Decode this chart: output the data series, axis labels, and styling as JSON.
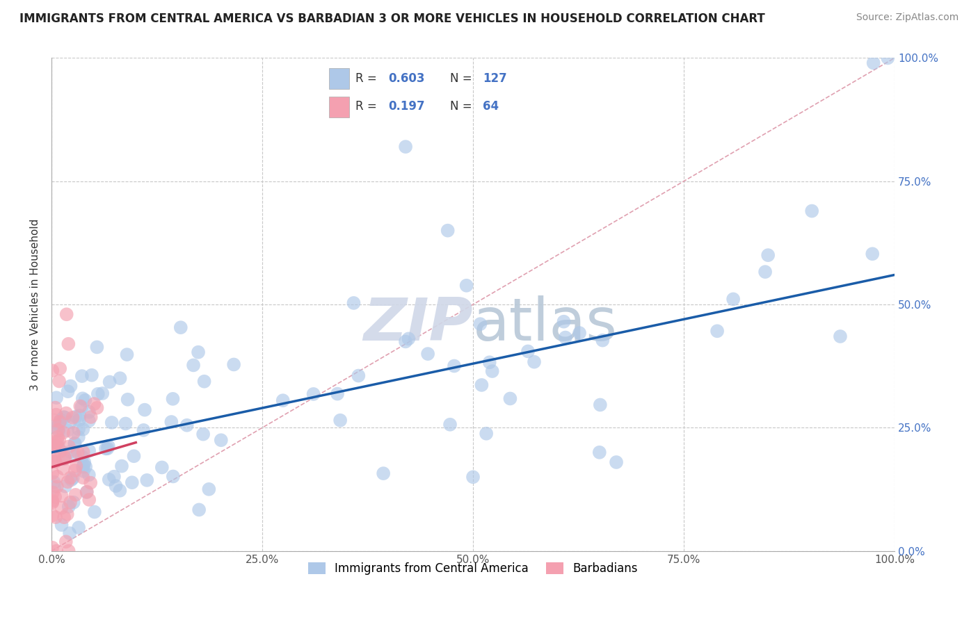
{
  "title": "IMMIGRANTS FROM CENTRAL AMERICA VS BARBADIAN 3 OR MORE VEHICLES IN HOUSEHOLD CORRELATION CHART",
  "source": "Source: ZipAtlas.com",
  "ylabel": "3 or more Vehicles in Household",
  "xlim": [
    0,
    100
  ],
  "ylim": [
    0,
    100
  ],
  "xticks": [
    0,
    25,
    50,
    75,
    100
  ],
  "xticklabels": [
    "0.0%",
    "25.0%",
    "50.0%",
    "75.0%",
    "100.0%"
  ],
  "yticks": [
    0,
    25,
    50,
    75,
    100
  ],
  "yticklabels": [
    "0.0%",
    "25.0%",
    "50.0%",
    "75.0%",
    "100.0%"
  ],
  "legend_labels": [
    "Immigrants from Central America",
    "Barbadians"
  ],
  "R_blue": "0.603",
  "N_blue": "127",
  "R_pink": "0.197",
  "N_pink": "64",
  "blue_color": "#aec8e8",
  "pink_color": "#f4a0b0",
  "blue_line_color": "#1a5ca8",
  "pink_line_color": "#d04060",
  "diag_color": "#e0a0b0",
  "watermark_color": "#d0d8e8",
  "background_color": "#ffffff",
  "grid_color": "#c8c8c8",
  "tick_label_color": "#4472c4",
  "title_color": "#222222",
  "source_color": "#888888"
}
